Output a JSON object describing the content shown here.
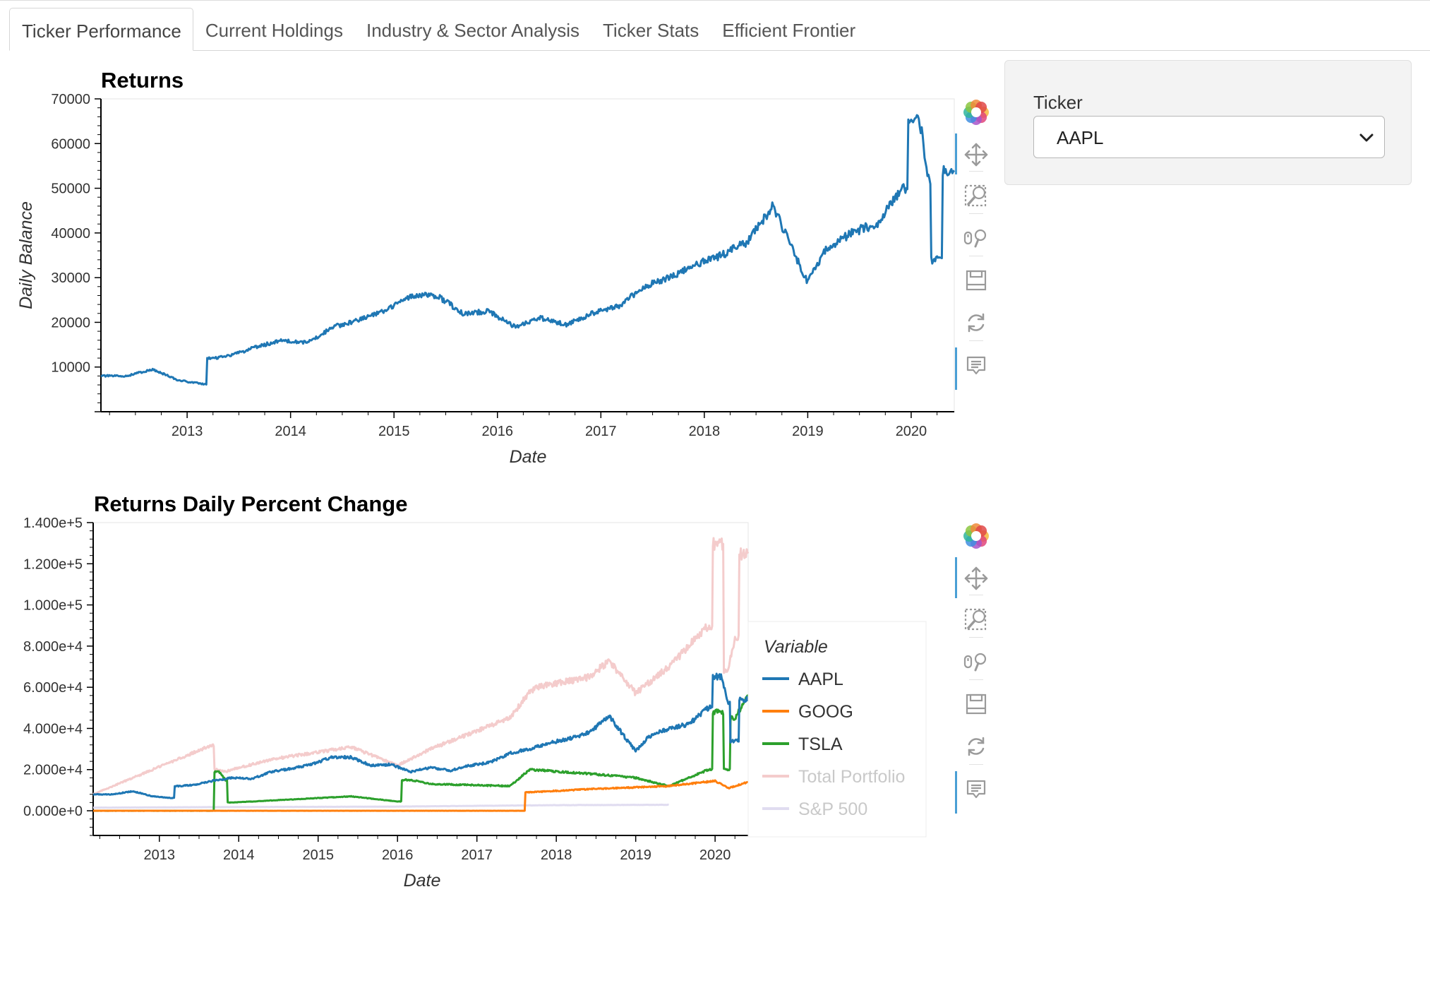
{
  "tabs": [
    {
      "label": "Ticker Performance",
      "active": true
    },
    {
      "label": "Current Holdings",
      "active": false
    },
    {
      "label": "Industry & Sector Analysis",
      "active": false
    },
    {
      "label": "Ticker Stats",
      "active": false
    },
    {
      "label": "Efficient Frontier",
      "active": false
    }
  ],
  "controls": {
    "ticker_label": "Ticker",
    "ticker_value": "AAPL"
  },
  "toolbar": {
    "icons": [
      "bokeh-logo-icon",
      "pan-icon",
      "box-zoom-icon",
      "wheel-zoom-icon",
      "save-icon",
      "reset-icon",
      "hover-icon"
    ],
    "active_color": "#4a9fd5"
  },
  "chart_data": [
    {
      "type": "line",
      "title": "Returns",
      "xlabel": "Date",
      "ylabel": "Daily Balance",
      "x_ticks": [
        "2013",
        "2014",
        "2015",
        "2016",
        "2017",
        "2018",
        "2019",
        "2020"
      ],
      "y_ticks": [
        "10000",
        "20000",
        "30000",
        "40000",
        "50000",
        "60000",
        "70000"
      ],
      "xlim": [
        "2012-03",
        "2020-06"
      ],
      "ylim": [
        0,
        70000
      ],
      "grid": false,
      "series": [
        {
          "color": "#1f77b4",
          "x": [
            "2012-03",
            "2012-06",
            "2012-09",
            "2012-12",
            "2013-03",
            "2013-04",
            "2013-06",
            "2013-09",
            "2013-12",
            "2014-03",
            "2014-06",
            "2014-09",
            "2014-12",
            "2015-03",
            "2015-06",
            "2015-09",
            "2015-12",
            "2016-03",
            "2016-06",
            "2016-09",
            "2016-12",
            "2017-03",
            "2017-06",
            "2017-09",
            "2017-12",
            "2018-03",
            "2018-06",
            "2018-09",
            "2018-12",
            "2019-01",
            "2019-03",
            "2019-06",
            "2019-09",
            "2019-12",
            "2020-02",
            "2020-03",
            "2020-04",
            "2020-06"
          ],
          "y": [
            8000,
            8000,
            9500,
            7000,
            6200,
            12000,
            12500,
            14500,
            16000,
            15500,
            19000,
            20500,
            22500,
            26000,
            26000,
            22000,
            22500,
            19000,
            21000,
            19500,
            22000,
            23500,
            28000,
            30000,
            33000,
            35000,
            38000,
            46000,
            33000,
            29000,
            36000,
            40000,
            42000,
            50000,
            65000,
            52000,
            34000,
            54000
          ]
        }
      ]
    },
    {
      "type": "line",
      "title": "Returns Daily Percent Change",
      "xlabel": "Date",
      "ylabel": "",
      "x_ticks": [
        "2013",
        "2014",
        "2015",
        "2016",
        "2017",
        "2018",
        "2019",
        "2020"
      ],
      "y_ticks": [
        "0.000e+0",
        "2.000e+4",
        "4.000e+4",
        "6.000e+4",
        "8.000e+4",
        "1.000e+5",
        "1.200e+5",
        "1.400e+5"
      ],
      "xlim": [
        "2012-03",
        "2020-06"
      ],
      "ylim": [
        -12000,
        140000
      ],
      "grid": false,
      "legend": {
        "title": "Variable",
        "placement": "right"
      },
      "series": [
        {
          "name": "S&P 500",
          "color": "#e0dcf0",
          "x": [
            "2012-03",
            "2013-12",
            "2015-12",
            "2017-12",
            "2019-06"
          ],
          "y": [
            1500,
            1800,
            2000,
            2700,
            2900
          ]
        },
        {
          "name": "Total Portfolio",
          "color": "#f4cccc",
          "x": [
            "2012-03",
            "2013-09",
            "2013-10",
            "2013-11",
            "2013-12",
            "2014-06",
            "2015-06",
            "2016-01",
            "2016-06",
            "2017-06",
            "2017-09",
            "2017-10",
            "2018-06",
            "2018-09",
            "2019-01",
            "2019-06",
            "2019-12",
            "2020-02",
            "2020-03",
            "2020-04",
            "2020-06"
          ],
          "y": [
            8000,
            32000,
            20000,
            19000,
            20000,
            25000,
            31000,
            22000,
            30000,
            45000,
            58000,
            60000,
            65000,
            73000,
            57000,
            70000,
            90000,
            130000,
            68000,
            85000,
            125000
          ]
        },
        {
          "name": "TSLA",
          "color": "#2ca02c",
          "x": [
            "2012-03",
            "2013-09",
            "2013-10",
            "2013-11",
            "2013-12",
            "2014-06",
            "2015-06",
            "2016-01",
            "2016-03",
            "2016-06",
            "2017-06",
            "2017-09",
            "2018-06",
            "2019-01",
            "2019-06",
            "2019-12",
            "2020-02",
            "2020-03",
            "2020-04",
            "2020-06"
          ],
          "y": [
            0,
            0,
            19000,
            15000,
            4000,
            5000,
            7000,
            4500,
            15000,
            13000,
            12000,
            20000,
            18000,
            16000,
            12000,
            20000,
            48000,
            20000,
            45000,
            56000
          ]
        },
        {
          "name": "GOOG",
          "color": "#ff7f0e",
          "x": [
            "2012-03",
            "2017-08",
            "2017-09",
            "2018-06",
            "2019-06",
            "2020-01",
            "2020-03",
            "2020-06"
          ],
          "y": [
            0,
            0,
            9000,
            10500,
            12000,
            14500,
            11000,
            14000
          ]
        },
        {
          "name": "AAPL",
          "color": "#1f77b4",
          "x": [
            "2012-03",
            "2012-06",
            "2012-09",
            "2012-12",
            "2013-03",
            "2013-04",
            "2013-06",
            "2013-09",
            "2013-12",
            "2014-03",
            "2014-06",
            "2014-09",
            "2014-12",
            "2015-03",
            "2015-06",
            "2015-09",
            "2015-12",
            "2016-03",
            "2016-06",
            "2016-09",
            "2016-12",
            "2017-03",
            "2017-06",
            "2017-09",
            "2017-12",
            "2018-03",
            "2018-06",
            "2018-09",
            "2018-12",
            "2019-01",
            "2019-03",
            "2019-06",
            "2019-09",
            "2019-12",
            "2020-02",
            "2020-03",
            "2020-04",
            "2020-06"
          ],
          "y": [
            8000,
            8000,
            9500,
            7000,
            6200,
            12000,
            12500,
            14500,
            16000,
            15500,
            19000,
            20500,
            22500,
            26000,
            26000,
            22000,
            22500,
            19000,
            21000,
            19500,
            22000,
            23500,
            28000,
            30000,
            33000,
            35000,
            38000,
            46000,
            33000,
            29000,
            36000,
            40000,
            42000,
            50000,
            65000,
            52000,
            34000,
            54000
          ]
        }
      ]
    }
  ]
}
